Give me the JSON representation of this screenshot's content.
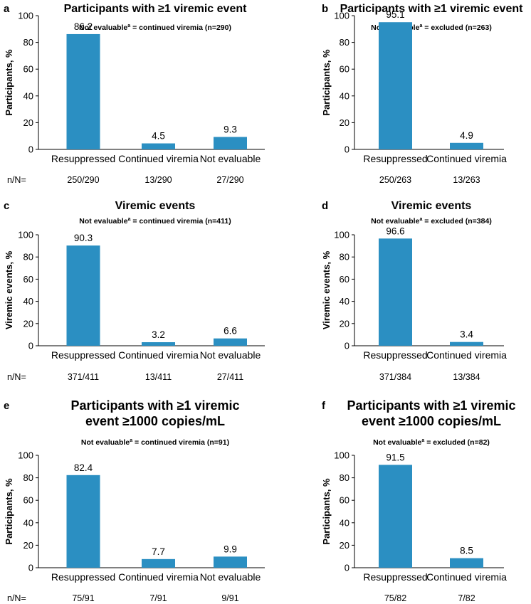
{
  "colors": {
    "bar": "#2b8fc2",
    "axis": "#000000",
    "text": "#000000"
  },
  "nn_label": "n/N=",
  "chart_data": [
    {
      "panel": "a",
      "type": "bar",
      "title": [
        "Participants with ≥1 viremic event"
      ],
      "subtitle_pre": "Not evaluable",
      "subtitle_sup": "a",
      "subtitle_post": " = continued viremia (n=290)",
      "ylabel": "Participants, %",
      "ylim": [
        0,
        100
      ],
      "yticks": [
        0,
        20,
        40,
        60,
        80,
        100
      ],
      "categories": [
        "Resuppressed",
        "Continued viremia",
        "Not evaluable"
      ],
      "values": [
        86.2,
        4.5,
        9.3
      ],
      "value_labels": [
        "86.2",
        "4.5",
        "9.3"
      ],
      "n_over_N": [
        "250/290",
        "13/290",
        "27/290"
      ],
      "show_nn_label": true
    },
    {
      "panel": "b",
      "type": "bar",
      "title": [
        "Participants with ≥1 viremic event"
      ],
      "subtitle_pre": "Not evaluable",
      "subtitle_sup": "a",
      "subtitle_post": " = excluded (n=263)",
      "ylabel": "Participants, %",
      "ylim": [
        0,
        100
      ],
      "yticks": [
        0,
        20,
        40,
        60,
        80,
        100
      ],
      "categories": [
        "Resuppressed",
        "Continued viremia"
      ],
      "values": [
        95.1,
        4.9
      ],
      "value_labels": [
        "95.1",
        "4.9"
      ],
      "n_over_N": [
        "250/263",
        "13/263"
      ],
      "show_nn_label": false
    },
    {
      "panel": "c",
      "type": "bar",
      "title": [
        "Viremic events"
      ],
      "subtitle_pre": "Not evaluable",
      "subtitle_sup": "a",
      "subtitle_post": " = continued viremia (n=411)",
      "ylabel": "Viremic events, %",
      "ylim": [
        0,
        100
      ],
      "yticks": [
        0,
        20,
        40,
        60,
        80,
        100
      ],
      "categories": [
        "Resuppressed",
        "Continued viremia",
        "Not evaluable"
      ],
      "values": [
        90.3,
        3.2,
        6.6
      ],
      "value_labels": [
        "90.3",
        "3.2",
        "6.6"
      ],
      "n_over_N": [
        "371/411",
        "13/411",
        "27/411"
      ],
      "show_nn_label": true
    },
    {
      "panel": "d",
      "type": "bar",
      "title": [
        "Viremic events"
      ],
      "subtitle_pre": "Not evaluable",
      "subtitle_sup": "a",
      "subtitle_post": " = excluded (n=384)",
      "ylabel": "Viremic events, %",
      "ylim": [
        0,
        100
      ],
      "yticks": [
        0,
        20,
        40,
        60,
        80,
        100
      ],
      "categories": [
        "Resuppressed",
        "Continued viremia"
      ],
      "values": [
        96.6,
        3.4
      ],
      "value_labels": [
        "96.6",
        "3.4"
      ],
      "n_over_N": [
        "371/384",
        "13/384"
      ],
      "show_nn_label": false
    },
    {
      "panel": "e",
      "type": "bar",
      "title": [
        "Participants with ≥1 viremic",
        "event ≥1000 copies/mL"
      ],
      "subtitle_pre": "Not evaluable",
      "subtitle_sup": "a",
      "subtitle_post": " = continued viremia (n=91)",
      "ylabel": "Participants, %",
      "ylim": [
        0,
        100
      ],
      "yticks": [
        0,
        20,
        40,
        60,
        80,
        100
      ],
      "categories": [
        "Resuppressed",
        "Continued viremia",
        "Not evaluable"
      ],
      "values": [
        82.4,
        7.7,
        9.9
      ],
      "value_labels": [
        "82.4",
        "7.7",
        "9.9"
      ],
      "n_over_N": [
        "75/91",
        "7/91",
        "9/91"
      ],
      "show_nn_label": true
    },
    {
      "panel": "f",
      "type": "bar",
      "title": [
        "Participants with ≥1 viremic",
        "event ≥1000 copies/mL"
      ],
      "subtitle_pre": "Not evaluable",
      "subtitle_sup": "a",
      "subtitle_post": " = excluded (n=82)",
      "ylabel": "Participants, %",
      "ylim": [
        0,
        100
      ],
      "yticks": [
        0,
        20,
        40,
        60,
        80,
        100
      ],
      "categories": [
        "Resuppressed",
        "Continued viremia"
      ],
      "values": [
        91.5,
        8.5
      ],
      "value_labels": [
        "91.5",
        "8.5"
      ],
      "n_over_N": [
        "75/82",
        "7/82"
      ],
      "show_nn_label": false
    }
  ]
}
